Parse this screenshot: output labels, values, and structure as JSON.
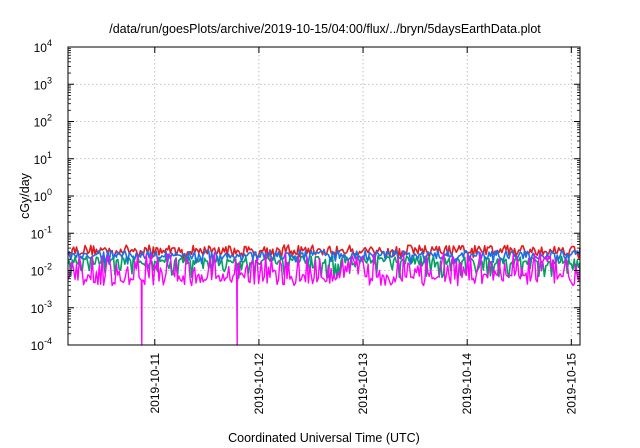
{
  "chart_data": {
    "type": "line",
    "title": "/data/run/goesPlots/archive/2019-10-15/04:00/flux/../bryn/5daysEarthData.plot",
    "xlabel": "Coordinated Universal Time (UTC)",
    "ylabel": "cGy/day",
    "yscale": "log",
    "ylim": [
      0.0001,
      10000
    ],
    "xlim": [
      "2019-10-10 04:00",
      "2019-10-15 02:00"
    ],
    "x_ticks": [
      "2019-10-11",
      "2019-10-12",
      "2019-10-13",
      "2019-10-14",
      "2019-10-15"
    ],
    "y_ticks": [
      {
        "value": 0.0001,
        "base": "10",
        "exp": "-4"
      },
      {
        "value": 0.001,
        "base": "10",
        "exp": "-3"
      },
      {
        "value": 0.01,
        "base": "10",
        "exp": "-2"
      },
      {
        "value": 0.1,
        "base": "10",
        "exp": "-1"
      },
      {
        "value": 1,
        "base": "10",
        "exp": "0"
      },
      {
        "value": 10,
        "base": "10",
        "exp": "1"
      },
      {
        "value": 100,
        "base": "10",
        "exp": "2"
      },
      {
        "value": 1000,
        "base": "10",
        "exp": "3"
      },
      {
        "value": 10000,
        "base": "10",
        "exp": "4"
      }
    ],
    "grid": true,
    "series": [
      {
        "color": "#e41a1c",
        "low": 0.02,
        "high": 0.065,
        "typical": 0.032
      },
      {
        "color": "#00a060",
        "low": 0.006,
        "high": 0.03,
        "typical": 0.018
      },
      {
        "color": "#1a6fe8",
        "low": 0.015,
        "high": 0.045,
        "typical": 0.024
      },
      {
        "color": "#ff00ff",
        "low": 0.0035,
        "high": 0.03,
        "typical": 0.0055,
        "dropouts": [
          "2019-10-10 21:00",
          "2019-10-11 19:00"
        ]
      }
    ]
  }
}
